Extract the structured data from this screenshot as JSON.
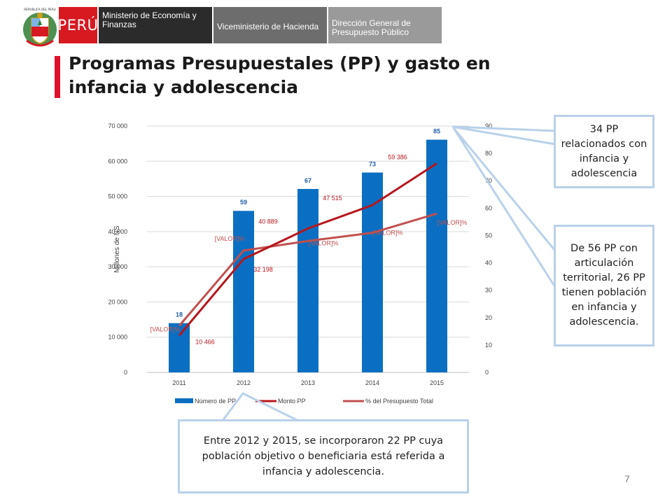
{
  "header": {
    "brand": "PERÚ",
    "ministry": "Ministerio de Economía y Finanzas",
    "vice_ministry": "Viceministerio de Hacienda",
    "directorate": "Dirección General de Presupuesto Público",
    "logo_text": "REPUBLICA DEL PERU"
  },
  "colors": {
    "brand_red": "#d71920",
    "bar": "#0a6fc2",
    "monto_line": "#b7161c",
    "pct_line": "#c0504d",
    "callout_border": "#b9d1ea"
  },
  "title": "Programas Presupuestales (PP) y gasto en infancia y adolescencia",
  "chart_data": {
    "type": "bar",
    "categories": [
      "2011",
      "2012",
      "2013",
      "2014",
      "2015"
    ],
    "ylabel": "Millones de NS",
    "ylim": [
      0,
      70000
    ],
    "y_ticks": [
      "0",
      "10 000",
      "20 000",
      "30 000",
      "40 000",
      "50 000",
      "60 000",
      "70 000"
    ],
    "y2lim": [
      0,
      90
    ],
    "y2_ticks": [
      "0",
      "10",
      "20",
      "30",
      "40",
      "50",
      "60",
      "70",
      "80",
      "90"
    ],
    "grid": true,
    "legend_position": "bottom",
    "series": [
      {
        "name": "Número de PP",
        "type": "bar",
        "axis": "secondary",
        "values": [
          18,
          59,
          67,
          73,
          85
        ],
        "labels": [
          "18",
          "59",
          "67",
          "73",
          "85"
        ]
      },
      {
        "name": "Monto PP",
        "type": "line",
        "axis": "primary",
        "values": [
          10466,
          32198,
          40889,
          47515,
          59386
        ],
        "labels": [
          "10 466",
          "32 198",
          "40 889",
          "47 515",
          "59 386"
        ]
      },
      {
        "name": "% del Presupuesto Total",
        "type": "line",
        "axis": "secondary",
        "values": [
          17,
          44.5,
          48,
          51,
          58
        ],
        "labels": [
          "[VALOR]%",
          "[VALOR]%",
          "[VALOR]%",
          "[VALOR]%",
          "[VALOR]%"
        ]
      }
    ]
  },
  "callouts": {
    "pp34": "34 PP relacionados con infancia y adolescencia",
    "pp56": "De 56 PP con articulación territorial, 26 PP tienen población en infancia y adolescencia.",
    "bottom": "Entre 2012 y 2015, se incorporaron 22 PP cuya población objetivo o beneficiaria está referida a infancia y adolescencia."
  },
  "page_number": "7"
}
